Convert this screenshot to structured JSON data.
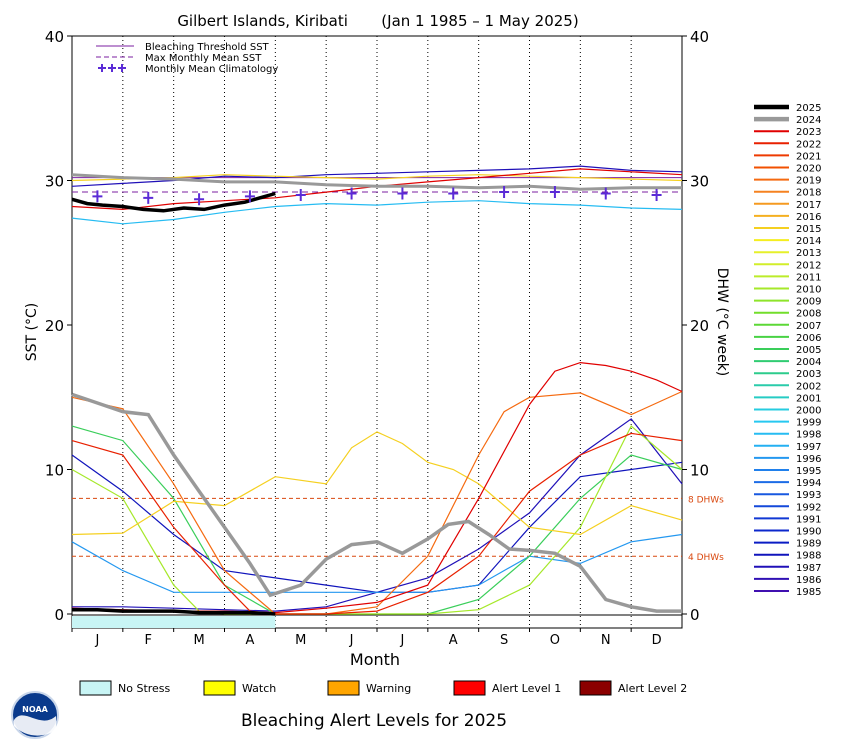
{
  "chart_data": {
    "type": "line",
    "title": "Gilbert Islands, Kiribati       (Jan 1 1985 – 1 May 2025)",
    "xlabel": "Month",
    "ylabel_left": "SST (°C)",
    "ylabel_right": "DHW (°C week)",
    "ylim": [
      0,
      40
    ],
    "y_ticks": [
      0,
      10,
      20,
      30,
      40
    ],
    "x_ticks": [
      "J",
      "F",
      "M",
      "A",
      "M",
      "J",
      "J",
      "A",
      "S",
      "O",
      "N",
      "D"
    ],
    "x_range_months": [
      0,
      12
    ],
    "grid": "vertical dotted month lines",
    "legend_top_left": [
      {
        "label": "Bleaching Threshold SST",
        "style": "solid",
        "color": "#7b1fa2"
      },
      {
        "label": "Max Monthly Mean SST",
        "style": "dashed",
        "color": "#7b1fa2"
      },
      {
        "label": "Monthly Mean Climatology",
        "style": "crosses",
        "color": "#5b2bd6"
      }
    ],
    "thresholds": [
      {
        "label": "8 DHWs",
        "value": 8,
        "color": "#d9480f"
      },
      {
        "label": "4 DHWs",
        "value": 4,
        "color": "#d9480f"
      }
    ],
    "bleaching_threshold_sst": 30.2,
    "max_monthly_mean_sst": 29.2,
    "climatology_x_months": [
      0.5,
      1.5,
      2.5,
      3.5,
      4.5,
      5.5,
      6.5,
      7.5,
      8.5,
      9.5,
      10.5,
      11.5
    ],
    "climatology": [
      28.9,
      28.8,
      28.7,
      28.9,
      29.0,
      29.1,
      29.1,
      29.1,
      29.2,
      29.2,
      29.1,
      29.0
    ],
    "years": [
      "2025",
      "2024",
      "2023",
      "2022",
      "2021",
      "2020",
      "2019",
      "2018",
      "2017",
      "2016",
      "2015",
      "2014",
      "2013",
      "2012",
      "2011",
      "2010",
      "2009",
      "2008",
      "2007",
      "2006",
      "2005",
      "2004",
      "2003",
      "2002",
      "2001",
      "2000",
      "1999",
      "1998",
      "1997",
      "1996",
      "1995",
      "1994",
      "1993",
      "1992",
      "1991",
      "1990",
      "1989",
      "1988",
      "1987",
      "1986",
      "1985"
    ],
    "year_colors": [
      "#000000",
      "#999999",
      "#e00000",
      "#e82000",
      "#ee3a00",
      "#f25000",
      "#f56a10",
      "#f58220",
      "#f59a20",
      "#f5b020",
      "#f5d020",
      "#f5ee20",
      "#e6f02a",
      "#d2ee2a",
      "#bcec2a",
      "#a6e82a",
      "#8ee42a",
      "#72de2a",
      "#5cd836",
      "#48d244",
      "#3ace5a",
      "#30cc72",
      "#2ccc8c",
      "#2accaa",
      "#26ccc4",
      "#26cce0",
      "#26c8f0",
      "#26bcf2",
      "#24b0f2",
      "#2498f0",
      "#2080ec",
      "#1c6ce6",
      "#1858e0",
      "#1448da",
      "#1038d4",
      "#0c28cc",
      "#0a1cc4",
      "#1014bc",
      "#2010b8",
      "#3010b4",
      "#4010b0"
    ],
    "sst_series": [
      {
        "year": "2025",
        "x": [
          0,
          0.3,
          0.6,
          1.0,
          1.4,
          1.8,
          2.2,
          2.6,
          3.0,
          3.4,
          3.7,
          4.0
        ],
        "y": [
          28.7,
          28.4,
          28.3,
          28.2,
          28.0,
          27.9,
          28.1,
          28.0,
          28.3,
          28.5,
          28.8,
          29.1
        ]
      },
      {
        "year": "2024",
        "x": [
          0,
          1,
          2,
          3,
          4,
          5,
          6,
          7,
          8,
          9,
          10,
          11,
          12
        ],
        "y": [
          30.4,
          30.2,
          30.1,
          29.9,
          29.9,
          29.7,
          29.6,
          29.6,
          29.5,
          29.6,
          29.4,
          29.5,
          29.5
        ]
      },
      {
        "year": "2023",
        "x": [
          0,
          1,
          2,
          3,
          4,
          5,
          6,
          7,
          8,
          9,
          10,
          11,
          12
        ],
        "y": [
          28.2,
          28.0,
          28.4,
          28.6,
          28.8,
          29.2,
          29.6,
          29.9,
          30.2,
          30.5,
          30.8,
          30.6,
          30.4
        ]
      },
      {
        "year": "2015",
        "x": [
          0,
          1,
          2,
          3,
          4,
          5,
          6,
          7,
          8,
          9,
          10,
          11,
          12
        ],
        "y": [
          30.0,
          30.1,
          30.2,
          30.4,
          30.3,
          30.2,
          30.1,
          30.3,
          30.4,
          30.3,
          30.2,
          30.1,
          30.0
        ]
      },
      {
        "year": "1998",
        "x": [
          0,
          1,
          2,
          3,
          4,
          5,
          6,
          7,
          8,
          9,
          10,
          11,
          12
        ],
        "y": [
          27.4,
          27.0,
          27.3,
          27.8,
          28.2,
          28.4,
          28.3,
          28.5,
          28.6,
          28.4,
          28.3,
          28.1,
          28.0
        ]
      },
      {
        "year": "1987",
        "x": [
          0,
          1,
          2,
          3,
          4,
          5,
          6,
          7,
          8,
          9,
          10,
          11,
          12
        ],
        "y": [
          29.6,
          29.8,
          30.0,
          30.3,
          30.2,
          30.4,
          30.5,
          30.6,
          30.7,
          30.8,
          31.0,
          30.7,
          30.6
        ]
      }
    ],
    "dhw_series": [
      {
        "year": "2025",
        "x": [
          0,
          0.5,
          1.0,
          1.5,
          2.0,
          2.5,
          3.0,
          3.5,
          4.0
        ],
        "y": [
          0.3,
          0.3,
          0.2,
          0.2,
          0.2,
          0.1,
          0.1,
          0.1,
          0.0
        ]
      },
      {
        "year": "2024",
        "x": [
          0,
          0.5,
          1.0,
          1.5,
          2.0,
          2.5,
          3.0,
          3.5,
          3.9,
          4.5,
          5.0,
          5.5,
          6.0,
          6.5,
          7.0,
          7.4,
          7.8,
          8.2,
          8.6,
          9.0,
          9.5,
          10.0,
          10.5,
          11.0,
          11.5,
          12.0
        ],
        "y": [
          15.2,
          14.6,
          14.0,
          13.8,
          11.0,
          8.5,
          6.0,
          3.5,
          1.3,
          2.0,
          3.8,
          4.8,
          5.0,
          4.2,
          5.2,
          6.2,
          6.4,
          5.5,
          4.5,
          4.4,
          4.2,
          3.3,
          1.0,
          0.5,
          0.2,
          0.2
        ]
      },
      {
        "year": "2023",
        "x": [
          0,
          1,
          2,
          3,
          4,
          5,
          6,
          7,
          8,
          9,
          9.5,
          10,
          10.5,
          11,
          11.5,
          12
        ],
        "y": [
          0.4,
          0.3,
          0.2,
          0.2,
          0.1,
          0.4,
          0.8,
          2.0,
          8.0,
          14.5,
          16.8,
          17.4,
          17.2,
          16.8,
          16.2,
          15.4
        ]
      },
      {
        "year": "2022",
        "x": [
          0,
          1,
          2,
          3,
          3.5,
          4,
          5,
          6,
          7,
          8,
          9,
          10,
          11,
          12
        ],
        "y": [
          12.0,
          11.0,
          6.0,
          2.0,
          0.2,
          0.0,
          0.0,
          0.2,
          1.5,
          4.0,
          8.5,
          11.0,
          12.5,
          12.0
        ]
      },
      {
        "year": "2019",
        "x": [
          0,
          1,
          2,
          3,
          4,
          5,
          6,
          7,
          8,
          8.5,
          9,
          10,
          11,
          12
        ],
        "y": [
          15.0,
          14.2,
          9.0,
          3.0,
          0.0,
          0.0,
          0.5,
          4.0,
          11.0,
          14.0,
          15.0,
          15.3,
          13.8,
          15.4
        ]
      },
      {
        "year": "2015",
        "x": [
          0,
          1,
          2,
          3,
          4,
          5,
          5.5,
          6,
          6.5,
          7,
          7.5,
          8,
          9,
          10,
          11,
          12
        ],
        "y": [
          5.5,
          5.6,
          7.8,
          7.5,
          9.5,
          9.0,
          11.5,
          12.6,
          11.8,
          10.5,
          10.0,
          9.0,
          6.0,
          5.5,
          7.5,
          6.5
        ]
      },
      {
        "year": "2010",
        "x": [
          0,
          1,
          2,
          2.5,
          3,
          4,
          5,
          6,
          7,
          8,
          9,
          10,
          11,
          12
        ],
        "y": [
          10.0,
          8.0,
          2.0,
          0.2,
          0.0,
          0.0,
          0.0,
          0.0,
          0.0,
          0.3,
          2.0,
          6.0,
          13.0,
          10.0
        ]
      },
      {
        "year": "2005",
        "x": [
          0,
          1,
          2,
          3,
          4,
          5,
          6,
          7,
          8,
          9,
          10,
          11,
          12
        ],
        "y": [
          13.0,
          12.0,
          8.0,
          2.0,
          0.0,
          0.0,
          0.0,
          0.0,
          1.0,
          4.0,
          8.0,
          11.0,
          10.0
        ]
      },
      {
        "year": "1996",
        "x": [
          0,
          1,
          2,
          3,
          4,
          5,
          6,
          7,
          8,
          9,
          10,
          11,
          12
        ],
        "y": [
          5.0,
          3.0,
          1.5,
          1.5,
          1.5,
          1.5,
          1.5,
          1.5,
          2.0,
          4.0,
          3.5,
          5.0,
          5.5
        ]
      },
      {
        "year": "1988",
        "x": [
          0,
          1,
          2,
          3,
          4,
          5,
          6,
          7,
          8,
          9,
          10,
          11,
          12
        ],
        "y": [
          11.0,
          8.5,
          5.5,
          3.0,
          2.5,
          2.0,
          1.5,
          1.5,
          2.0,
          6.0,
          9.5,
          10.0,
          10.5
        ]
      },
      {
        "year": "1987",
        "x": [
          0,
          1,
          2,
          3,
          4,
          5,
          6,
          7,
          8,
          9,
          10,
          11,
          12
        ],
        "y": [
          0.5,
          0.5,
          0.4,
          0.3,
          0.2,
          0.5,
          1.5,
          2.5,
          4.5,
          7.0,
          11.0,
          13.5,
          9.0
        ]
      }
    ],
    "alert_legend": [
      {
        "label": "No Stress",
        "color": "#c8f5f5"
      },
      {
        "label": "Watch",
        "color": "#ffff00"
      },
      {
        "label": "Warning",
        "color": "#ffa500"
      },
      {
        "label": "Alert Level 1",
        "color": "#ff0000"
      },
      {
        "label": "Alert Level 2",
        "color": "#8b0000"
      }
    ],
    "alert_bar": {
      "level": "No Stress",
      "from_month": 0,
      "to_month": 4.0
    },
    "footer_title": "Bleaching Alert Levels for 2025",
    "logo_text": "NOAA"
  }
}
